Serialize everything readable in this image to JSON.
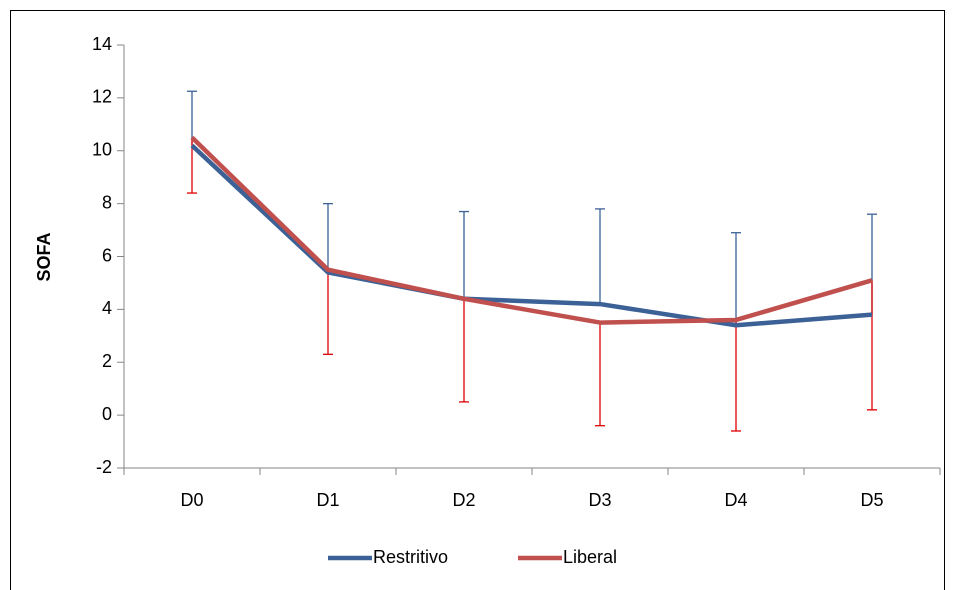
{
  "chart_data": {
    "type": "line",
    "y_label": "SOFA",
    "categories": [
      "D0",
      "D1",
      "D2",
      "D3",
      "D4",
      "D5"
    ],
    "series": [
      {
        "name": "Restritivo",
        "color": "#3c6196",
        "error_color": "#3c6196",
        "error_direction": "up",
        "values": [
          10.2,
          5.4,
          4.4,
          4.2,
          3.4,
          3.8
        ],
        "errors": [
          2.05,
          2.6,
          3.3,
          3.6,
          3.5,
          3.8
        ]
      },
      {
        "name": "Liberal",
        "color": "#c0504d",
        "error_color": "#e00000",
        "error_direction": "down",
        "values": [
          10.5,
          5.5,
          4.4,
          3.5,
          3.6,
          5.1
        ],
        "errors": [
          2.1,
          3.2,
          3.9,
          3.9,
          4.2,
          4.9
        ]
      }
    ],
    "ylim": [
      -2,
      14
    ],
    "yticks": [
      -2,
      0,
      2,
      4,
      6,
      8,
      10,
      12,
      14
    ],
    "grid": false
  }
}
